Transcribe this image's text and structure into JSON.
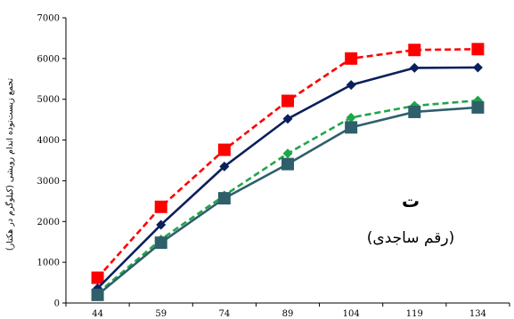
{
  "chart_data": {
    "type": "line",
    "x": [
      44,
      59,
      74,
      89,
      104,
      119,
      134
    ],
    "ylim": [
      0,
      7000
    ],
    "yticks": [
      0,
      1000,
      2000,
      3000,
      4000,
      5000,
      6000,
      7000
    ],
    "xlabel": "",
    "ylabel": "تجمع زیست‌توده اندام رویشی (کیلوگرم در هکتار)",
    "annotation_letter": "ت",
    "annotation_sub": "(رقم ساجدی)",
    "grid": false,
    "legend": "none",
    "series": [
      {
        "values": [
          620,
          2360,
          3760,
          4960,
          6000,
          6210,
          6230
        ],
        "color": "#ff0000",
        "dash": true,
        "marker": "square"
      },
      {
        "values": [
          360,
          1920,
          3350,
          4520,
          5350,
          5770,
          5780
        ],
        "color": "#0a1f5c",
        "dash": false,
        "marker": "diamond"
      },
      {
        "values": [
          240,
          1560,
          2640,
          3670,
          4550,
          4840,
          4970
        ],
        "color": "#1fa64a",
        "dash": true,
        "marker": "diamond"
      },
      {
        "values": [
          200,
          1480,
          2570,
          3410,
          4310,
          4690,
          4800
        ],
        "color": "#2e5f6b",
        "dash": false,
        "marker": "square"
      }
    ]
  }
}
